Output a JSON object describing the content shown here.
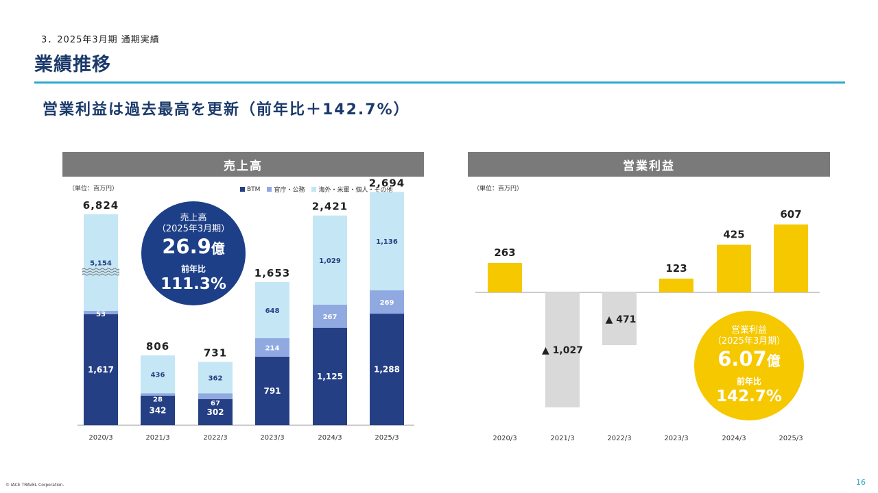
{
  "header": {
    "section_label": "3．2025年3月期 通期実績",
    "title": "業績推移",
    "headline": "営業利益は過去最高を更新（前年比＋142.7%）"
  },
  "colors": {
    "btm": "#253f85",
    "government": "#90a9e0",
    "overseas": "#c5e6f4",
    "operating_profit": "#f6c800",
    "operating_loss": "#d9d9d9",
    "accent": "#2ba8c8",
    "panel_header": "#7a7a7a"
  },
  "sales_panel": {
    "header": "売上高",
    "unit": "（単位：百万円）",
    "legend": [
      "BTM",
      "官庁・公務",
      "海外・米軍・個人・その他"
    ],
    "bubble": {
      "line1": "売上高",
      "line2": "（2025年3月期）",
      "value": "26.9",
      "value_unit": "億",
      "yoy_label": "前年比",
      "yoy_value": "111.3%"
    }
  },
  "profit_panel": {
    "header": "営業利益",
    "unit": "（単位：百万円）",
    "bubble": {
      "line1": "営業利益",
      "line2": "（2025年3月期）",
      "value": "6.07",
      "value_unit": "億",
      "yoy_label": "前年比",
      "yoy_value": "142.7%"
    }
  },
  "chart_data": [
    {
      "type": "bar",
      "stacked": true,
      "title": "売上高",
      "categories": [
        "2020/3",
        "2021/3",
        "2022/3",
        "2023/3",
        "2024/3",
        "2025/3"
      ],
      "series": [
        {
          "name": "BTM",
          "values": [
            1617,
            342,
            302,
            791,
            1125,
            1288
          ],
          "labels": [
            "1,617",
            "342",
            "302",
            "791",
            "1,125",
            "1,288"
          ]
        },
        {
          "name": "官庁・公務",
          "values": [
            53,
            28,
            67,
            214,
            267,
            269
          ],
          "labels": [
            "53",
            "28",
            "67",
            "214",
            "267",
            "269"
          ]
        },
        {
          "name": "海外・米軍・個人・その他",
          "values": [
            5154,
            436,
            362,
            648,
            1029,
            1136
          ],
          "labels": [
            "5,154",
            "436",
            "362",
            "648",
            "1,029",
            "1,136"
          ]
        }
      ],
      "totals": [
        6824,
        806,
        731,
        1653,
        2421,
        2694
      ],
      "total_labels": [
        "6,824",
        "806",
        "731",
        "1,653",
        "2,421",
        "2,694"
      ],
      "axis_break_category": "2020/3",
      "grid": false,
      "legend_position": "top-right"
    },
    {
      "type": "bar",
      "title": "営業利益",
      "categories": [
        "2020/3",
        "2021/3",
        "2022/3",
        "2023/3",
        "2024/3",
        "2025/3"
      ],
      "values": [
        263,
        -1027,
        -471,
        123,
        425,
        607
      ],
      "value_labels": [
        "263",
        "▲ 1,027",
        "▲ 471",
        "123",
        "425",
        "607"
      ],
      "grid": false
    }
  ],
  "footer": {
    "copyright": "© IACE TRAVEL Corporation.",
    "page_number": "16"
  }
}
